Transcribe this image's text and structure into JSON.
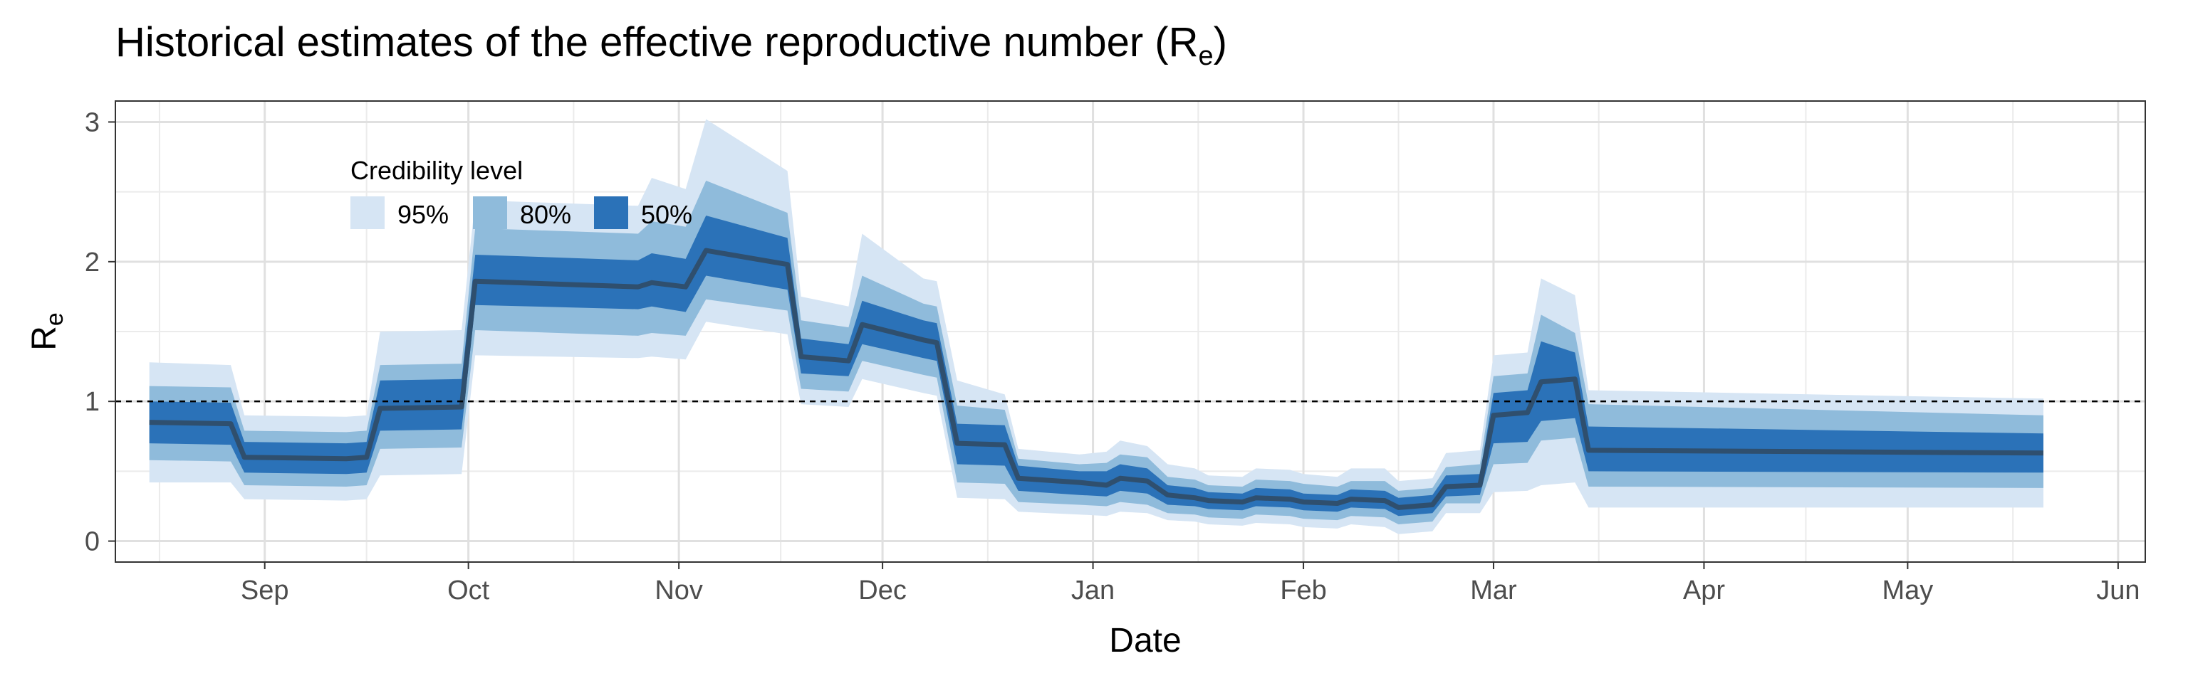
{
  "chart_data": {
    "type": "area",
    "title": "Historical estimates of the effective reproductive number (R",
    "title_subscript": "e",
    "title_end": ")",
    "xlabel": "Date",
    "ylabel": "R",
    "ylabel_subscript": "e",
    "xlim": [
      "2020-08-10",
      "2021-06-05"
    ],
    "ylim": [
      -0.15,
      3.15
    ],
    "x_ticks": [
      {
        "date": "2020-09-01",
        "label": "Sep"
      },
      {
        "date": "2020-10-01",
        "label": "Oct"
      },
      {
        "date": "2020-11-01",
        "label": "Nov"
      },
      {
        "date": "2020-12-01",
        "label": "Dec"
      },
      {
        "date": "2021-01-01",
        "label": "Jan"
      },
      {
        "date": "2021-02-01",
        "label": "Feb"
      },
      {
        "date": "2021-03-01",
        "label": "Mar"
      },
      {
        "date": "2021-04-01",
        "label": "Apr"
      },
      {
        "date": "2021-05-01",
        "label": "May"
      },
      {
        "date": "2021-06-01",
        "label": "Jun"
      }
    ],
    "y_ticks": [
      0,
      1,
      2,
      3
    ],
    "reference_line": 1,
    "grid": true,
    "legend": {
      "title": "Credibility level",
      "position": "top-left",
      "items": [
        {
          "label": "95%",
          "color": "#d6e5f4"
        },
        {
          "label": "80%",
          "color": "#8fbbdb"
        },
        {
          "label": "50%",
          "color": "#2b72b8"
        }
      ]
    },
    "colors": {
      "median": "#2f4f6e",
      "band95": "#d6e5f4",
      "band80": "#8fbbdb",
      "band50": "#2b72b8"
    },
    "series": {
      "x": [
        "2020-08-15",
        "2020-08-27",
        "2020-08-29",
        "2020-09-13",
        "2020-09-16",
        "2020-09-18",
        "2020-09-30",
        "2020-10-02",
        "2020-10-26",
        "2020-10-28",
        "2020-11-02",
        "2020-11-05",
        "2020-11-17",
        "2020-11-19",
        "2020-11-26",
        "2020-11-28",
        "2020-12-07",
        "2020-12-09",
        "2020-12-12",
        "2020-12-19",
        "2020-12-21",
        "2020-12-30",
        "2021-01-03",
        "2021-01-05",
        "2021-01-09",
        "2021-01-12",
        "2021-01-16",
        "2021-01-18",
        "2021-01-23",
        "2021-01-25",
        "2021-01-30",
        "2021-02-01",
        "2021-02-06",
        "2021-02-08",
        "2021-02-13",
        "2021-02-15",
        "2021-02-20",
        "2021-02-22",
        "2021-02-27",
        "2021-03-01",
        "2021-03-06",
        "2021-03-08",
        "2021-03-13",
        "2021-03-15",
        "2021-05-21"
      ],
      "median": [
        0.85,
        0.84,
        0.6,
        0.59,
        0.6,
        0.95,
        0.96,
        1.86,
        1.82,
        1.85,
        1.82,
        2.08,
        1.98,
        1.32,
        1.29,
        1.55,
        1.44,
        1.42,
        0.7,
        0.69,
        0.45,
        0.42,
        0.4,
        0.45,
        0.43,
        0.33,
        0.31,
        0.29,
        0.28,
        0.31,
        0.3,
        0.28,
        0.27,
        0.3,
        0.29,
        0.24,
        0.26,
        0.39,
        0.4,
        0.9,
        0.92,
        1.14,
        1.16,
        0.65,
        0.63
      ],
      "lo95": [
        0.42,
        0.42,
        0.3,
        0.29,
        0.3,
        0.47,
        0.48,
        1.33,
        1.31,
        1.32,
        1.3,
        1.57,
        1.48,
        0.98,
        0.96,
        1.16,
        1.06,
        1.04,
        0.31,
        0.3,
        0.21,
        0.19,
        0.18,
        0.21,
        0.2,
        0.15,
        0.14,
        0.12,
        0.11,
        0.13,
        0.12,
        0.1,
        0.09,
        0.12,
        0.1,
        0.05,
        0.07,
        0.2,
        0.2,
        0.35,
        0.36,
        0.4,
        0.42,
        0.24,
        0.24
      ],
      "hi95": [
        1.28,
        1.26,
        0.9,
        0.89,
        0.9,
        1.5,
        1.51,
        2.44,
        2.4,
        2.6,
        2.52,
        3.02,
        2.65,
        1.75,
        1.68,
        2.2,
        1.88,
        1.86,
        1.15,
        1.05,
        0.66,
        0.62,
        0.64,
        0.72,
        0.68,
        0.55,
        0.52,
        0.47,
        0.46,
        0.52,
        0.51,
        0.48,
        0.46,
        0.52,
        0.52,
        0.43,
        0.45,
        0.63,
        0.65,
        1.33,
        1.35,
        1.88,
        1.76,
        1.08,
        1.02
      ],
      "lo80": [
        0.58,
        0.57,
        0.4,
        0.39,
        0.4,
        0.66,
        0.67,
        1.51,
        1.47,
        1.49,
        1.47,
        1.73,
        1.65,
        1.09,
        1.07,
        1.29,
        1.19,
        1.17,
        0.42,
        0.41,
        0.28,
        0.26,
        0.25,
        0.28,
        0.26,
        0.2,
        0.19,
        0.17,
        0.16,
        0.19,
        0.18,
        0.16,
        0.15,
        0.18,
        0.17,
        0.12,
        0.14,
        0.27,
        0.27,
        0.55,
        0.56,
        0.72,
        0.74,
        0.39,
        0.38
      ],
      "hi80": [
        1.11,
        1.1,
        0.79,
        0.78,
        0.79,
        1.26,
        1.27,
        2.24,
        2.2,
        2.29,
        2.25,
        2.58,
        2.35,
        1.58,
        1.53,
        1.9,
        1.7,
        1.68,
        0.97,
        0.94,
        0.59,
        0.55,
        0.56,
        0.62,
        0.6,
        0.46,
        0.44,
        0.4,
        0.39,
        0.44,
        0.43,
        0.41,
        0.39,
        0.43,
        0.43,
        0.36,
        0.38,
        0.53,
        0.55,
        1.18,
        1.2,
        1.62,
        1.49,
        0.98,
        0.9
      ],
      "lo50": [
        0.7,
        0.69,
        0.49,
        0.48,
        0.49,
        0.79,
        0.8,
        1.69,
        1.66,
        1.68,
        1.64,
        1.9,
        1.8,
        1.2,
        1.18,
        1.41,
        1.31,
        1.29,
        0.55,
        0.54,
        0.36,
        0.33,
        0.32,
        0.36,
        0.34,
        0.26,
        0.25,
        0.23,
        0.22,
        0.25,
        0.24,
        0.22,
        0.21,
        0.24,
        0.23,
        0.18,
        0.2,
        0.32,
        0.33,
        0.7,
        0.71,
        0.86,
        0.88,
        0.5,
        0.49
      ],
      "hi50": [
        1.0,
        0.99,
        0.71,
        0.7,
        0.71,
        1.15,
        1.16,
        2.05,
        2.01,
        2.06,
        2.02,
        2.33,
        2.17,
        1.45,
        1.41,
        1.72,
        1.58,
        1.56,
        0.84,
        0.83,
        0.54,
        0.5,
        0.5,
        0.55,
        0.52,
        0.4,
        0.38,
        0.35,
        0.34,
        0.38,
        0.37,
        0.34,
        0.33,
        0.37,
        0.36,
        0.31,
        0.33,
        0.47,
        0.48,
        1.06,
        1.08,
        1.43,
        1.35,
        0.82,
        0.77
      ]
    }
  }
}
